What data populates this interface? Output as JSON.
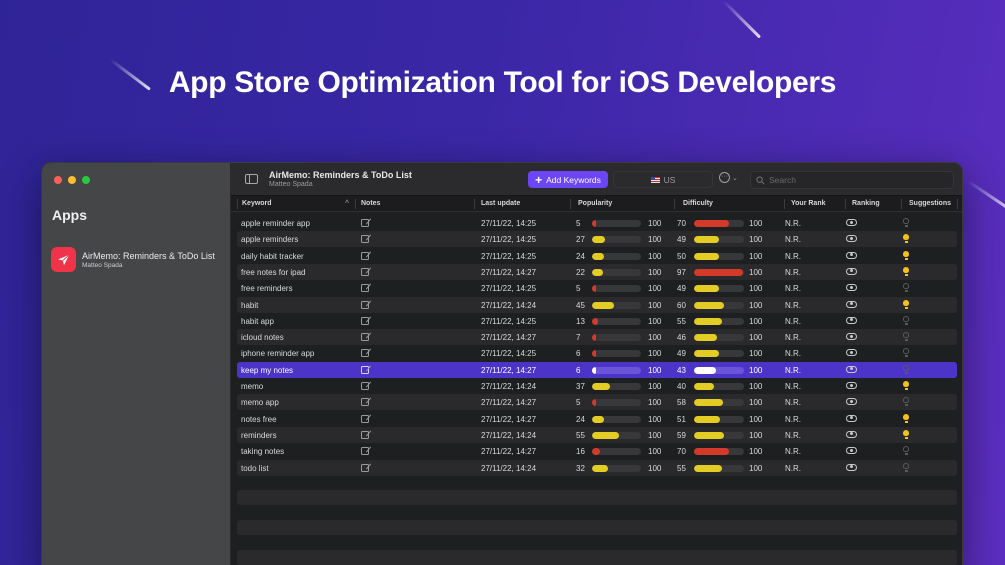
{
  "headline": "App Store Optimization Tool for iOS Developers",
  "colors": {
    "accent": "#6c46f5",
    "selection": "#4d34c9",
    "bar_red": "#d43a2a",
    "bar_yellow": "#e3cc23",
    "bar_white": "#ffffff",
    "bulb_on": "#f2c21b"
  },
  "window": {
    "traffic_lights": [
      "#fe5f57",
      "#febc2e",
      "#28c840"
    ],
    "sidebar": {
      "title": "Apps",
      "apps": [
        {
          "name": "AirMemo: Reminders & ToDo List",
          "developer": "Matteo Spada",
          "icon": "paper-plane-icon"
        }
      ]
    },
    "toolbar": {
      "app_title": "AirMemo: Reminders & ToDo List",
      "app_developer": "Matteo Spada",
      "add_keywords_label": "Add Keywords",
      "country": "US",
      "search_placeholder": "Search"
    },
    "table": {
      "columns": [
        "Keyword",
        "Notes",
        "Last update",
        "Popularity",
        "Difficulty",
        "Your Rank",
        "Ranking",
        "Suggestions"
      ],
      "max_value": "100",
      "rows": [
        {
          "keyword": "apple reminder app",
          "last_update": "27/11/22, 14:25",
          "popularity": 5,
          "difficulty": 70,
          "rank": "N.R.",
          "suggestion": false
        },
        {
          "keyword": "apple reminders",
          "last_update": "27/11/22, 14:25",
          "popularity": 27,
          "difficulty": 49,
          "rank": "N.R.",
          "suggestion": true
        },
        {
          "keyword": "daily habit tracker",
          "last_update": "27/11/22, 14:25",
          "popularity": 24,
          "difficulty": 50,
          "rank": "N.R.",
          "suggestion": true
        },
        {
          "keyword": "free notes for ipad",
          "last_update": "27/11/22, 14:27",
          "popularity": 22,
          "difficulty": 97,
          "rank": "N.R.",
          "suggestion": true
        },
        {
          "keyword": "free reminders",
          "last_update": "27/11/22, 14:25",
          "popularity": 5,
          "difficulty": 49,
          "rank": "N.R.",
          "suggestion": false
        },
        {
          "keyword": "habit",
          "last_update": "27/11/22, 14:24",
          "popularity": 45,
          "difficulty": 60,
          "rank": "N.R.",
          "suggestion": true
        },
        {
          "keyword": "habit app",
          "last_update": "27/11/22, 14:25",
          "popularity": 13,
          "difficulty": 55,
          "rank": "N.R.",
          "suggestion": false
        },
        {
          "keyword": "icloud notes",
          "last_update": "27/11/22, 14:27",
          "popularity": 7,
          "difficulty": 46,
          "rank": "N.R.",
          "suggestion": false
        },
        {
          "keyword": "iphone reminder app",
          "last_update": "27/11/22, 14:25",
          "popularity": 6,
          "difficulty": 49,
          "rank": "N.R.",
          "suggestion": false
        },
        {
          "keyword": "keep my notes",
          "last_update": "27/11/22, 14:27",
          "popularity": 6,
          "difficulty": 43,
          "rank": "N.R.",
          "suggestion": false,
          "selected": true
        },
        {
          "keyword": "memo",
          "last_update": "27/11/22, 14:24",
          "popularity": 37,
          "difficulty": 40,
          "rank": "N.R.",
          "suggestion": true
        },
        {
          "keyword": "memo app",
          "last_update": "27/11/22, 14:27",
          "popularity": 5,
          "difficulty": 58,
          "rank": "N.R.",
          "suggestion": false
        },
        {
          "keyword": "notes free",
          "last_update": "27/11/22, 14:27",
          "popularity": 24,
          "difficulty": 51,
          "rank": "N.R.",
          "suggestion": true
        },
        {
          "keyword": "reminders",
          "last_update": "27/11/22, 14:24",
          "popularity": 55,
          "difficulty": 59,
          "rank": "N.R.",
          "suggestion": true
        },
        {
          "keyword": "taking notes",
          "last_update": "27/11/22, 14:27",
          "popularity": 16,
          "difficulty": 70,
          "rank": "N.R.",
          "suggestion": false
        },
        {
          "keyword": "todo list",
          "last_update": "27/11/22, 14:24",
          "popularity": 32,
          "difficulty": 55,
          "rank": "N.R.",
          "suggestion": false
        }
      ],
      "empty_rows": 3
    }
  }
}
